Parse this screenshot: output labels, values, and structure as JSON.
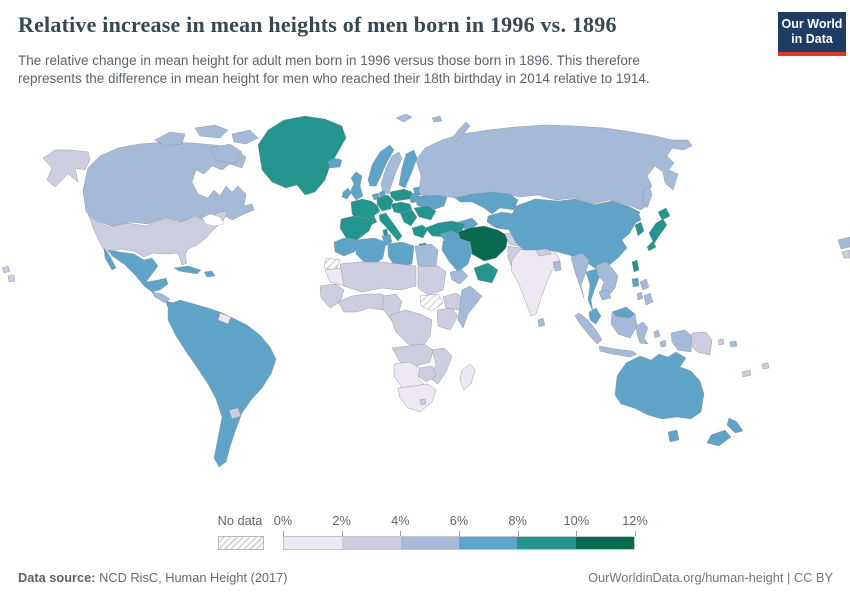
{
  "header": {
    "title": "Relative increase in mean heights of men born in 1996 vs. 1896",
    "subtitle_line1": "The relative change in mean height for adult men born in 1996 versus those born in 1896. This therefore",
    "subtitle_line2": "represents the difference in mean height for men who reached their 18th birthday in 2014 relative to 1914.",
    "logo": {
      "line1": "Our World",
      "line2": "in Data",
      "bg_color": "#1d3d63",
      "accent_color": "#e5372b"
    }
  },
  "legend": {
    "no_data_label": "No data",
    "tick_labels": [
      "0%",
      "2%",
      "4%",
      "6%",
      "8%",
      "10%",
      "12%"
    ]
  },
  "footer": {
    "source_label": "Data source:",
    "source_value": " NCD RisC, Human Height (2017)",
    "right_text": "OurWorldinData.org/human-height | CC BY"
  },
  "chart_data": {
    "type": "choropleth_map",
    "title": "Relative increase in mean heights of men born in 1996 vs. 1896",
    "unit": "%",
    "bins": [
      {
        "label": "0-2%",
        "color": "#eee8f2"
      },
      {
        "label": "2-4%",
        "color": "#cdcde0"
      },
      {
        "label": "4-6%",
        "color": "#a4bad8"
      },
      {
        "label": "6-8%",
        "color": "#5fa3c9"
      },
      {
        "label": "8-10%",
        "color": "#23948e"
      },
      {
        "label": "10-12%",
        "color": "#086b4f"
      }
    ],
    "no_data": {
      "pattern": "diagonal-hatch",
      "stripe_color": "#ccd1d4"
    },
    "regions": {
      "alaska": 1,
      "canada": 2,
      "arctic-islands-1": 2,
      "arctic-islands-2": 2,
      "arctic-islands-3": 2,
      "arctic-islands-4": 2,
      "greenland": 4,
      "usa": 1,
      "mexico": 3,
      "baja": 3,
      "central-america-north": 2,
      "central-america-south": 3,
      "cuba": 3,
      "hispaniola": 3,
      "south-america": 3,
      "guyana": 0,
      "uruguay": 1,
      "iceland": 3,
      "uk": 3,
      "ireland": 3,
      "norway": 3,
      "sweden": 2,
      "finland": 3,
      "denmark": 3,
      "baltics": 3,
      "lowlands": 3,
      "germany": 4,
      "france": 4,
      "iberia": 4,
      "italy": 4,
      "sicily": 4,
      "sardinia": 4,
      "central-europe": 4,
      "poland": 4,
      "belarus": 3,
      "ukraine": 3,
      "romania-bulgaria": 4,
      "balkans-west": 4,
      "greece": 4,
      "crete": 4,
      "russia": 2,
      "sakhalin": 2,
      "novaya-zemlya": 2,
      "svalbard": 2,
      "franz-josef": 2,
      "kazakhstan": 3,
      "central-asia": 3,
      "caucasus": 3,
      "turkey": 4,
      "syria-iraq": 3,
      "iran": 5,
      "saudi-arabia": 3,
      "yemen": 2,
      "oman": 4,
      "afghanistan": 1,
      "pakistan": 1,
      "india": 0,
      "nepal": 1,
      "bangladesh": 2,
      "sri-lanka": 2,
      "china": 3,
      "mongolia": 3,
      "north-korea": 3,
      "south-korea": 4,
      "japan-hokkaido": 4,
      "japan-honshu": 4,
      "japan-kyushu": 4,
      "taiwan": 4,
      "hainan": 3,
      "myanmar": 2,
      "thailand": 3,
      "laos-vietnam": 2,
      "cambodia": 2,
      "malaysia-peninsula": 3,
      "sumatra": 2,
      "java": 2,
      "borneo-indonesia": 2,
      "malaysia-borneo": 3,
      "sulawesi": 2,
      "moluccas-1": 2,
      "moluccas-2": 2,
      "west-papua": 2,
      "papua-new-guinea": 1,
      "png-islands": 1,
      "philippines-1": 2,
      "philippines-2": 2,
      "philippines-3": 2,
      "australia": 3,
      "tasmania": 3,
      "new-zealand-north": 3,
      "new-zealand-south": 3,
      "solomon": 2,
      "new-caledonia": 1,
      "fiji": 1,
      "morocco": 3,
      "western-sahara": "no-data",
      "mauritania": 0,
      "algeria": 3,
      "tunisia": 3,
      "libya": 3,
      "egypt": 2,
      "sahel": 1,
      "sudan": 1,
      "south-sudan": "no-data",
      "senegal-guinea": 1,
      "west-africa-coast": 1,
      "nigeria-cameroon": 1,
      "ethiopia": 1,
      "somalia": 2,
      "drc": 1,
      "kenya-tanzania": 1,
      "angola-zambia": 1,
      "mozambique-malawi": 1,
      "zimbabwe": 1,
      "namibia-botswana": 0,
      "south-africa": 0,
      "lesotho": 1,
      "madagascar": 0,
      "left-pacific-speck-1": 1,
      "left-pacific-speck-2": 1,
      "right-speck-1": 2,
      "right-speck-2": 1
    }
  }
}
